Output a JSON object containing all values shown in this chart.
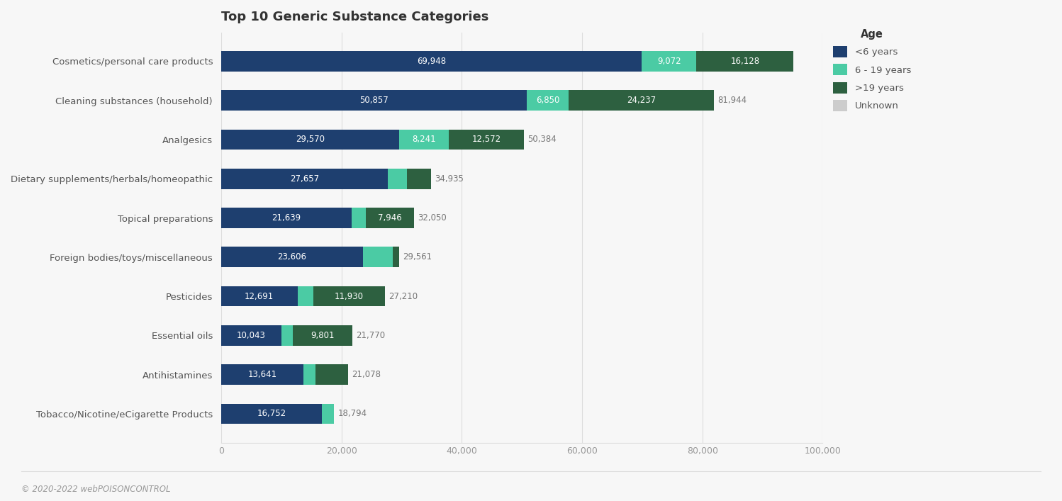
{
  "title": "Top 10 Generic Substance Categories",
  "categories": [
    "Cosmetics/personal care products",
    "Cleaning substances (household)",
    "Analgesics",
    "Dietary supplements/herbals/homeopathic",
    "Topical preparations",
    "Foreign bodies/toys/miscellaneous",
    "Pesticides",
    "Essential oils",
    "Antihistamines",
    "Tobacco/Nicotine/eCigarette Products"
  ],
  "seg_lt6": [
    69948,
    50857,
    29570,
    27657,
    21639,
    23606,
    12691,
    10043,
    13641,
    16752
  ],
  "seg_619": [
    9072,
    6850,
    8241,
    3200,
    2465,
    4955,
    2589,
    1926,
    2000,
    2042
  ],
  "seg_gt19": [
    16128,
    24237,
    12572,
    4078,
    7946,
    1000,
    11930,
    9801,
    5437,
    0
  ],
  "seg_unk": [
    0,
    0,
    0,
    0,
    0,
    0,
    0,
    0,
    0,
    0
  ],
  "labels_lt6": [
    "69,948",
    "50,857",
    "29,570",
    "27,657",
    "21,639",
    "23,606",
    "12,691",
    "10,043",
    "13,641",
    "16,752"
  ],
  "labels_619": [
    "9,072",
    "6,850",
    "8,241",
    null,
    null,
    null,
    null,
    null,
    null,
    null
  ],
  "labels_gt19": [
    "16,128",
    "24,237",
    "12,572",
    null,
    "7,946",
    null,
    "11,930",
    "9,801",
    null,
    null
  ],
  "labels_after": [
    null,
    "81,944",
    "50,384",
    "34,935",
    "32,050",
    "29,561",
    "27,210",
    "21,770",
    "21,078",
    "18,794"
  ],
  "color_lt6": "#1e3f6f",
  "color_619": "#4bcba4",
  "color_gt19": "#2d6040",
  "color_unk": "#cccccc",
  "legend_labels": [
    "<6 years",
    "6 - 19 years",
    ">19 years",
    "Unknown"
  ],
  "bg_color": "#f7f7f7",
  "footer": "© 2020-2022 webPOISONCONTROL",
  "xlim": [
    0,
    100000
  ],
  "xticks": [
    0,
    20000,
    40000,
    60000,
    80000,
    100000
  ]
}
